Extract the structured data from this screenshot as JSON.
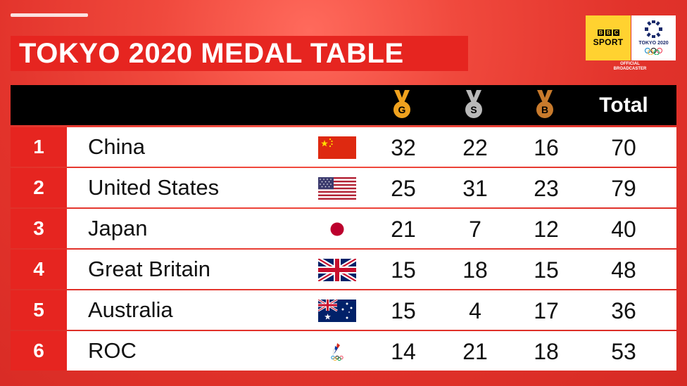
{
  "title": "TOKYO 2020 MEDAL TABLE",
  "broadcaster": {
    "bbc_letters": [
      "B",
      "B",
      "C"
    ],
    "sport": "SPORT",
    "olympic_label": "TOKYO 2020",
    "tagline_line1": "OFFICIAL",
    "tagline_line2": "BROADCASTER"
  },
  "header": {
    "gold_label": "G",
    "silver_label": "S",
    "bronze_label": "B",
    "total_label": "Total"
  },
  "colors": {
    "background_red": "#e2332b",
    "rank_red": "#e62520",
    "gold": "#f0a21e",
    "silver": "#b9b9b9",
    "bronze": "#c87a2c",
    "bbc_yellow": "#ffd230"
  },
  "rows": [
    {
      "rank": "1",
      "country": "China",
      "flag": "china-flag",
      "gold": "32",
      "silver": "22",
      "bronze": "16",
      "total": "70"
    },
    {
      "rank": "2",
      "country": "United States",
      "flag": "usa-flag",
      "gold": "25",
      "silver": "31",
      "bronze": "23",
      "total": "79"
    },
    {
      "rank": "3",
      "country": "Japan",
      "flag": "japan-flag",
      "gold": "21",
      "silver": "7",
      "bronze": "12",
      "total": "40"
    },
    {
      "rank": "4",
      "country": "Great Britain",
      "flag": "uk-flag",
      "gold": "15",
      "silver": "18",
      "bronze": "15",
      "total": "48"
    },
    {
      "rank": "5",
      "country": "Australia",
      "flag": "australia-flag",
      "gold": "15",
      "silver": "4",
      "bronze": "17",
      "total": "36"
    },
    {
      "rank": "6",
      "country": "ROC",
      "flag": "roc-emblem",
      "gold": "14",
      "silver": "21",
      "bronze": "18",
      "total": "53"
    }
  ]
}
